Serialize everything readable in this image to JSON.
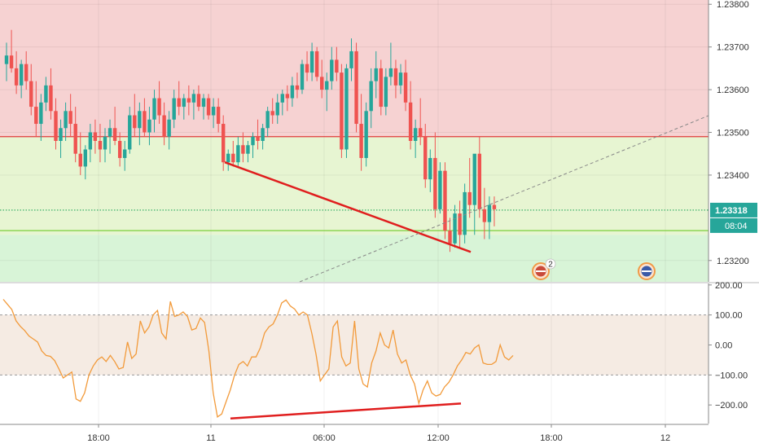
{
  "chart_data": [
    {
      "type": "candlestick",
      "title": "",
      "ylim": [
        1.2315,
        1.2381
      ],
      "y_ticks": [
        1.238,
        1.237,
        1.236,
        1.235,
        1.234,
        1.232
      ],
      "y_tick_labels": [
        "1.23800",
        "1.23700",
        "1.23600",
        "1.23500",
        "1.23400",
        "1.23200"
      ],
      "zones": [
        {
          "name": "upper",
          "from": 1.2349,
          "to": 1.2381,
          "color": "#f6d2d2"
        },
        {
          "name": "middle",
          "from": 1.2326,
          "to": 1.2349,
          "color": "#e7f5d2"
        },
        {
          "name": "lower",
          "from": 1.2315,
          "to": 1.2326,
          "color": "#d8f4d7"
        }
      ],
      "horizontal_lines": [
        {
          "value": 1.2349,
          "style": "solid",
          "color": "#e03c3c"
        },
        {
          "value": 1.23318,
          "style": "dotted",
          "color": "#27a85d"
        },
        {
          "value": 1.2327,
          "style": "solid",
          "color": "#7bcf3c"
        }
      ],
      "price_label": {
        "value": "1.23318",
        "countdown": "08:04",
        "color": "#26a69a"
      },
      "candles_ohlc": [
        [
          1.2366,
          1.2371,
          1.2362,
          1.2368
        ],
        [
          1.2368,
          1.2374,
          1.2364,
          1.2365
        ],
        [
          1.2365,
          1.2369,
          1.2359,
          1.2361
        ],
        [
          1.2361,
          1.2367,
          1.2358,
          1.2366
        ],
        [
          1.2366,
          1.2369,
          1.236,
          1.2362
        ],
        [
          1.2362,
          1.2366,
          1.2354,
          1.2356
        ],
        [
          1.2356,
          1.2362,
          1.2349,
          1.2352
        ],
        [
          1.2352,
          1.2359,
          1.2348,
          1.2357
        ],
        [
          1.2357,
          1.2363,
          1.2355,
          1.2361
        ],
        [
          1.2361,
          1.2365,
          1.2353,
          1.2355
        ],
        [
          1.2355,
          1.2358,
          1.2346,
          1.2348
        ],
        [
          1.2348,
          1.2353,
          1.2344,
          1.2351
        ],
        [
          1.2351,
          1.2357,
          1.2348,
          1.2355
        ],
        [
          1.2355,
          1.2359,
          1.2349,
          1.2352
        ],
        [
          1.2352,
          1.2356,
          1.2343,
          1.2345
        ],
        [
          1.2345,
          1.235,
          1.234,
          1.2342
        ],
        [
          1.2342,
          1.2347,
          1.2339,
          1.2346
        ],
        [
          1.2346,
          1.2352,
          1.2343,
          1.235
        ],
        [
          1.235,
          1.2353,
          1.2345,
          1.2348
        ],
        [
          1.2348,
          1.2352,
          1.2343,
          1.2346
        ],
        [
          1.2346,
          1.2351,
          1.2343,
          1.2349
        ],
        [
          1.2349,
          1.2353,
          1.2345,
          1.2351
        ],
        [
          1.2351,
          1.2356,
          1.2347,
          1.2348
        ],
        [
          1.2348,
          1.235,
          1.2342,
          1.2344
        ],
        [
          1.2344,
          1.2348,
          1.2341,
          1.2346
        ],
        [
          1.2346,
          1.2356,
          1.2345,
          1.2354
        ],
        [
          1.2354,
          1.2359,
          1.2349,
          1.2351
        ],
        [
          1.2351,
          1.2357,
          1.2347,
          1.2355
        ],
        [
          1.2355,
          1.2358,
          1.2349,
          1.235
        ],
        [
          1.235,
          1.2356,
          1.2347,
          1.2353
        ],
        [
          1.2353,
          1.236,
          1.235,
          1.2358
        ],
        [
          1.2358,
          1.2362,
          1.2352,
          1.2354
        ],
        [
          1.2354,
          1.2357,
          1.2347,
          1.2349
        ],
        [
          1.2349,
          1.2355,
          1.2346,
          1.2353
        ],
        [
          1.2353,
          1.236,
          1.2351,
          1.2358
        ],
        [
          1.2358,
          1.2362,
          1.2354,
          1.2356
        ],
        [
          1.2356,
          1.2359,
          1.2353,
          1.2358
        ],
        [
          1.2358,
          1.2361,
          1.2354,
          1.2357
        ],
        [
          1.2357,
          1.236,
          1.2353,
          1.2359
        ],
        [
          1.2359,
          1.2361,
          1.2355,
          1.2356
        ],
        [
          1.2356,
          1.2359,
          1.2353,
          1.2358
        ],
        [
          1.2358,
          1.2359,
          1.2353,
          1.2354
        ],
        [
          1.2354,
          1.2358,
          1.2351,
          1.2356
        ],
        [
          1.2356,
          1.2358,
          1.235,
          1.2352
        ],
        [
          1.2352,
          1.2354,
          1.2341,
          1.2343
        ],
        [
          1.2343,
          1.2346,
          1.2341,
          1.2345
        ],
        [
          1.2345,
          1.2348,
          1.2342,
          1.2343
        ],
        [
          1.2343,
          1.2349,
          1.2342,
          1.2347
        ],
        [
          1.2347,
          1.235,
          1.2343,
          1.2345
        ],
        [
          1.2345,
          1.2348,
          1.2343,
          1.2347
        ],
        [
          1.2347,
          1.235,
          1.2344,
          1.2349
        ],
        [
          1.2349,
          1.2353,
          1.2346,
          1.2348
        ],
        [
          1.2348,
          1.2352,
          1.2346,
          1.2351
        ],
        [
          1.2351,
          1.2356,
          1.2349,
          1.2355
        ],
        [
          1.2355,
          1.2358,
          1.2352,
          1.2354
        ],
        [
          1.2354,
          1.2359,
          1.2352,
          1.2357
        ],
        [
          1.2357,
          1.236,
          1.2354,
          1.2359
        ],
        [
          1.2359,
          1.2361,
          1.2355,
          1.2358
        ],
        [
          1.2358,
          1.2363,
          1.2356,
          1.2361
        ],
        [
          1.2361,
          1.2364,
          1.2358,
          1.236
        ],
        [
          1.236,
          1.2367,
          1.2359,
          1.2366
        ],
        [
          1.2366,
          1.2369,
          1.2362,
          1.2364
        ],
        [
          1.2364,
          1.2371,
          1.2362,
          1.2369
        ],
        [
          1.2369,
          1.237,
          1.2362,
          1.2363
        ],
        [
          1.2363,
          1.2367,
          1.2358,
          1.236
        ],
        [
          1.236,
          1.2364,
          1.2355,
          1.2362
        ],
        [
          1.2362,
          1.237,
          1.236,
          1.2367
        ],
        [
          1.2367,
          1.237,
          1.2362,
          1.2364
        ],
        [
          1.2364,
          1.2366,
          1.2344,
          1.2346
        ],
        [
          1.2346,
          1.2366,
          1.2344,
          1.2365
        ],
        [
          1.2365,
          1.2372,
          1.2362,
          1.2369
        ],
        [
          1.2369,
          1.2371,
          1.235,
          1.2352
        ],
        [
          1.2352,
          1.2359,
          1.2341,
          1.2344
        ],
        [
          1.2344,
          1.2357,
          1.2342,
          1.2355
        ],
        [
          1.2355,
          1.2365,
          1.2351,
          1.2362
        ],
        [
          1.2362,
          1.2369,
          1.2358,
          1.2365
        ],
        [
          1.2365,
          1.2367,
          1.2354,
          1.2356
        ],
        [
          1.2356,
          1.2365,
          1.2354,
          1.2363
        ],
        [
          1.2363,
          1.2371,
          1.2361,
          1.2365
        ],
        [
          1.2365,
          1.2367,
          1.2358,
          1.2361
        ],
        [
          1.2361,
          1.2366,
          1.2359,
          1.2364
        ],
        [
          1.2364,
          1.2367,
          1.2355,
          1.2357
        ],
        [
          1.2357,
          1.2362,
          1.2346,
          1.2348
        ],
        [
          1.2348,
          1.2353,
          1.2344,
          1.2351
        ],
        [
          1.2351,
          1.2358,
          1.2347,
          1.2349
        ],
        [
          1.2349,
          1.2352,
          1.2337,
          1.2339
        ],
        [
          1.2339,
          1.2346,
          1.2336,
          1.2344
        ],
        [
          1.2344,
          1.235,
          1.233,
          1.2332
        ],
        [
          1.2332,
          1.2343,
          1.2331,
          1.2341
        ],
        [
          1.2341,
          1.2343,
          1.2325,
          1.2327
        ],
        [
          1.2327,
          1.233,
          1.2322,
          1.2324
        ],
        [
          1.2324,
          1.2333,
          1.2323,
          1.2331
        ],
        [
          1.2331,
          1.2334,
          1.2323,
          1.2326
        ],
        [
          1.2326,
          1.2338,
          1.2324,
          1.2336
        ],
        [
          1.2336,
          1.2344,
          1.233,
          1.2333
        ],
        [
          1.2333,
          1.2342,
          1.2326,
          1.2345
        ],
        [
          1.2345,
          1.2349,
          1.233,
          1.2332
        ],
        [
          1.2332,
          1.2337,
          1.2325,
          1.2329
        ],
        [
          1.2329,
          1.2335,
          1.2325,
          1.2333
        ],
        [
          1.2333,
          1.2335,
          1.2328,
          1.2332
        ]
      ],
      "x_tick_labels": [
        "18:00",
        "11",
        "06:00",
        "12:00",
        "18:00",
        "12"
      ],
      "annotations": [
        {
          "type": "trendline",
          "from": [
            19,
            1.2343
          ],
          "to": [
            98,
            1.2322
          ],
          "color": "#e01e1e"
        },
        {
          "type": "trendline",
          "style": "dashed",
          "from": [
            22,
            1.2301
          ],
          "to": [
            210,
            1.2358
          ],
          "color": "#888888"
        },
        {
          "type": "event-icon",
          "at": 166,
          "badge": "2"
        },
        {
          "type": "event-icon",
          "at": 196
        }
      ]
    },
    {
      "type": "line",
      "ylim": [
        -262,
        205
      ],
      "y_ticks": [
        200,
        100,
        0,
        -100,
        -200
      ],
      "y_tick_labels": [
        "200.00",
        "100.00",
        "0.00",
        "−100.00",
        "−200.00"
      ],
      "band": {
        "from": -100,
        "to": 100,
        "color": "#f5ebe3"
      },
      "series": [
        {
          "color": "#f29a3a",
          "values": [
            152,
            135,
            118,
            80,
            62,
            48,
            30,
            20,
            10,
            -20,
            -35,
            -38,
            -52,
            -80,
            -110,
            -100,
            -90,
            -180,
            -188,
            -160,
            -100,
            -70,
            -50,
            -40,
            -55,
            -35,
            -55,
            -80,
            -75,
            10,
            -45,
            -30,
            80,
            40,
            60,
            100,
            115,
            40,
            20,
            145,
            95,
            100,
            110,
            95,
            50,
            55,
            90,
            75,
            -20,
            -160,
            -240,
            -230,
            -190,
            -150,
            -100,
            -65,
            -55,
            -70,
            -40,
            -40,
            -10,
            40,
            60,
            70,
            100,
            140,
            150,
            130,
            120,
            100,
            110,
            100,
            40,
            -30,
            -120,
            -100,
            -80,
            60,
            80,
            -40,
            -70,
            -60,
            80,
            -80,
            -130,
            -140,
            -60,
            -20,
            40,
            0,
            -10,
            50,
            -30,
            -60,
            -50,
            -100,
            -130,
            -195,
            -150,
            -120,
            -160,
            -170,
            -165,
            -140,
            -125,
            -100,
            -70,
            -50,
            -25,
            -30,
            -10,
            0,
            -60,
            -65,
            -65,
            -55,
            0,
            -40,
            -50,
            -35
          ]
        },
        {
          "type": "trendline",
          "color": "#e01e1e",
          "from": [
            75,
            -245
          ],
          "to": [
            168,
            -195
          ]
        }
      ],
      "x_tick_labels": [
        "18:00",
        "11",
        "06:00",
        "12:00",
        "18:00",
        "12"
      ]
    }
  ]
}
